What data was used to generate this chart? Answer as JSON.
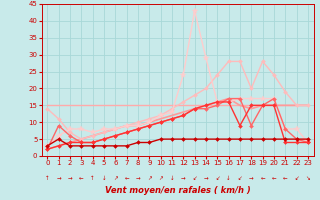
{
  "xlabel": "Vent moyen/en rafales ( km/h )",
  "background_color": "#c8eaea",
  "grid_color": "#a8d8d8",
  "xlim": [
    -0.5,
    23.5
  ],
  "ylim": [
    0,
    45
  ],
  "yticks": [
    0,
    5,
    10,
    15,
    20,
    25,
    30,
    35,
    40,
    45
  ],
  "xticks": [
    0,
    1,
    2,
    3,
    4,
    5,
    6,
    7,
    8,
    9,
    10,
    11,
    12,
    13,
    14,
    15,
    16,
    17,
    18,
    19,
    20,
    21,
    22,
    23
  ],
  "series": [
    {
      "x": [
        0,
        1,
        2,
        3,
        4,
        5,
        6,
        7,
        8,
        9,
        10,
        11,
        12,
        13,
        14,
        15,
        16,
        17,
        18,
        19,
        20,
        21,
        22,
        23
      ],
      "y": [
        15,
        15,
        15,
        15,
        15,
        15,
        15,
        15,
        15,
        15,
        15,
        15,
        15,
        15,
        15,
        15,
        15,
        15,
        15,
        15,
        15,
        15,
        15,
        15
      ],
      "color": "#ffaaaa",
      "lw": 1.0,
      "marker": null,
      "zorder": 2
    },
    {
      "x": [
        0,
        1,
        2,
        3,
        4,
        5,
        6,
        7,
        8,
        9,
        10,
        11,
        12,
        13,
        14,
        15,
        16,
        17,
        18,
        19,
        20,
        21,
        22,
        23
      ],
      "y": [
        14,
        11,
        7,
        5,
        6,
        7,
        8,
        9,
        10,
        11,
        12,
        14,
        16,
        18,
        20,
        24,
        28,
        28,
        20,
        28,
        24,
        19,
        15,
        15
      ],
      "color": "#ffbbbb",
      "lw": 1.0,
      "marker": "D",
      "ms": 2.0,
      "zorder": 3
    },
    {
      "x": [
        0,
        1,
        2,
        3,
        4,
        5,
        6,
        7,
        8,
        9,
        10,
        11,
        12,
        13,
        14,
        15,
        16,
        17,
        18,
        19,
        20,
        21,
        22,
        23
      ],
      "y": [
        3,
        6,
        8,
        8,
        7,
        8,
        8,
        9,
        9,
        10,
        12,
        13,
        24,
        43,
        29,
        16,
        16,
        17,
        17,
        17,
        17,
        8,
        8,
        4
      ],
      "color": "#ffcccc",
      "lw": 1.0,
      "marker": "*",
      "ms": 4,
      "zorder": 3
    },
    {
      "x": [
        0,
        1,
        2,
        3,
        4,
        5,
        6,
        7,
        8,
        9,
        10,
        11,
        12,
        13,
        14,
        15,
        16,
        17,
        18,
        19,
        20,
        21,
        22,
        23
      ],
      "y": [
        2,
        3,
        4,
        5,
        6,
        7,
        8,
        9,
        9,
        10,
        11,
        12,
        13,
        14,
        15,
        16,
        17,
        15,
        14,
        15,
        15,
        15,
        15,
        15
      ],
      "color": "#ff9999",
      "lw": 1.2,
      "marker": null,
      "zorder": 2
    },
    {
      "x": [
        0,
        1,
        2,
        3,
        4,
        5,
        6,
        7,
        8,
        9,
        10,
        11,
        12,
        13,
        14,
        15,
        16,
        17,
        18,
        19,
        20,
        21,
        22,
        23
      ],
      "y": [
        2,
        9,
        6,
        4,
        4,
        5,
        6,
        7,
        8,
        9,
        10,
        11,
        12,
        14,
        14,
        15,
        17,
        17,
        9,
        15,
        17,
        8,
        5,
        4
      ],
      "color": "#ff6666",
      "lw": 1.0,
      "marker": "D",
      "ms": 2.0,
      "zorder": 4
    },
    {
      "x": [
        0,
        1,
        2,
        3,
        4,
        5,
        6,
        7,
        8,
        9,
        10,
        11,
        12,
        13,
        14,
        15,
        16,
        17,
        18,
        19,
        20,
        21,
        22,
        23
      ],
      "y": [
        2,
        3,
        4,
        4,
        4,
        5,
        6,
        7,
        8,
        9,
        10,
        11,
        12,
        14,
        15,
        16,
        16,
        9,
        15,
        15,
        15,
        4,
        4,
        4
      ],
      "color": "#ff3333",
      "lw": 1.0,
      "marker": "D",
      "ms": 2.0,
      "zorder": 4
    },
    {
      "x": [
        0,
        1,
        2,
        3,
        4,
        5,
        6,
        7,
        8,
        9,
        10,
        11,
        12,
        13,
        14,
        15,
        16,
        17,
        18,
        19,
        20,
        21,
        22,
        23
      ],
      "y": [
        3,
        5,
        3,
        3,
        3,
        3,
        3,
        3,
        4,
        4,
        5,
        5,
        5,
        5,
        5,
        5,
        5,
        5,
        5,
        5,
        5,
        5,
        5,
        5
      ],
      "color": "#cc0000",
      "lw": 1.0,
      "marker": "D",
      "ms": 2.0,
      "zorder": 5
    }
  ],
  "wind_arrows": [
    "arrow_up",
    "arrow_right",
    "arrow_right",
    "arrow_left",
    "arrow_up",
    "arrow_down",
    "arrow_upright",
    "arrow_left",
    "arrow_right",
    "arrow_upright",
    "arrow_upright",
    "arrow_down",
    "arrow_right",
    "arrow_downleft",
    "arrow_right",
    "arrow_downleft",
    "arrow_down",
    "arrow_downleft",
    "arrow_right",
    "arrow_left",
    "arrow_left",
    "arrow_left",
    "arrow_downleft",
    "arrow_downright"
  ]
}
